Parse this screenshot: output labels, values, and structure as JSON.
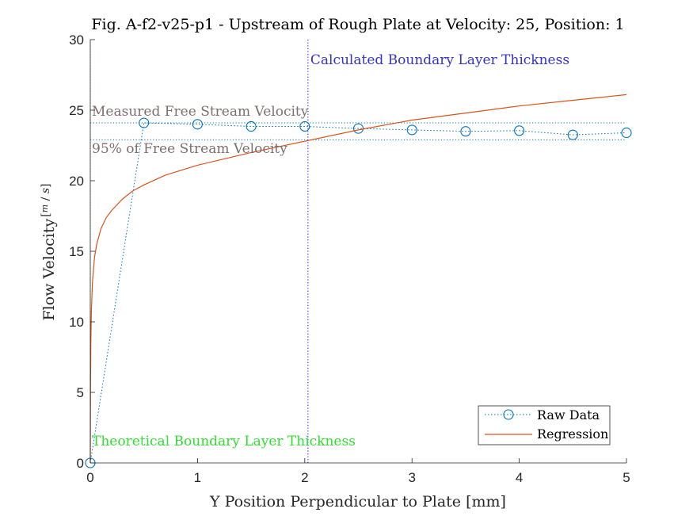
{
  "chart_data": {
    "type": "line",
    "title": "Fig. A-f2-v25-p1 - Upstream of Rough Plate at Velocity: 25, Position: 1",
    "xlabel": "Y Position Perpendicular to Plate [mm]",
    "ylabel": "Flow Velocity[m/s]",
    "ylabel_main": "Flow Velocity",
    "ylabel_unit_num": "m",
    "ylabel_unit_den": "s",
    "xlim": [
      0,
      5
    ],
    "ylim": [
      0,
      30
    ],
    "xticks": [
      0,
      1,
      2,
      3,
      4,
      5
    ],
    "yticks": [
      0,
      5,
      10,
      15,
      20,
      25,
      30
    ],
    "grid": false,
    "legend_position": "bottom-right",
    "series": [
      {
        "name": "Raw Data",
        "style": "dotted-circles",
        "color": "#0072BD",
        "x": [
          0,
          0.5,
          1,
          1.5,
          2,
          2.5,
          3,
          3.5,
          4,
          4.5,
          5
        ],
        "y": [
          0,
          24.1,
          24.0,
          23.85,
          23.85,
          23.7,
          23.6,
          23.5,
          23.55,
          23.25,
          23.4
        ]
      },
      {
        "name": "Regression",
        "style": "solid",
        "color": "#D95319",
        "x": [
          0.002,
          0.005,
          0.01,
          0.02,
          0.04,
          0.06,
          0.1,
          0.15,
          0.2,
          0.3,
          0.4,
          0.5,
          0.7,
          1.0,
          1.5,
          2.0,
          2.5,
          3.0,
          3.5,
          4.0,
          4.5,
          5.0
        ],
        "y": [
          5.5,
          8.5,
          10.8,
          12.8,
          14.6,
          15.5,
          16.6,
          17.4,
          17.9,
          18.7,
          19.3,
          19.7,
          20.4,
          21.1,
          22.0,
          22.8,
          23.6,
          24.3,
          24.8,
          25.3,
          25.7,
          26.1
        ]
      }
    ],
    "reference_lines": [
      {
        "orientation": "horizontal",
        "value": 24.1,
        "color": "#0072BD",
        "style": "dotted",
        "label": "Measured Free Stream Velocity",
        "label_color": "#7E6E6E"
      },
      {
        "orientation": "horizontal",
        "value": 22.9,
        "color": "#0072BD",
        "style": "dotted",
        "label": "95% of Free Stream Velocity",
        "label_color": "#7E6E6E"
      },
      {
        "orientation": "vertical",
        "value": 2.03,
        "color": "#0000FF",
        "style": "dotted",
        "label": "Calculated Boundary Layer Thickness",
        "label_color": "#3333CC"
      },
      {
        "orientation": "vertical",
        "value": 0.0,
        "color": "#00CC00",
        "style": "dotted",
        "label": "Theoretical Boundary Layer Thickness",
        "label_color": "#33DD33"
      }
    ]
  }
}
